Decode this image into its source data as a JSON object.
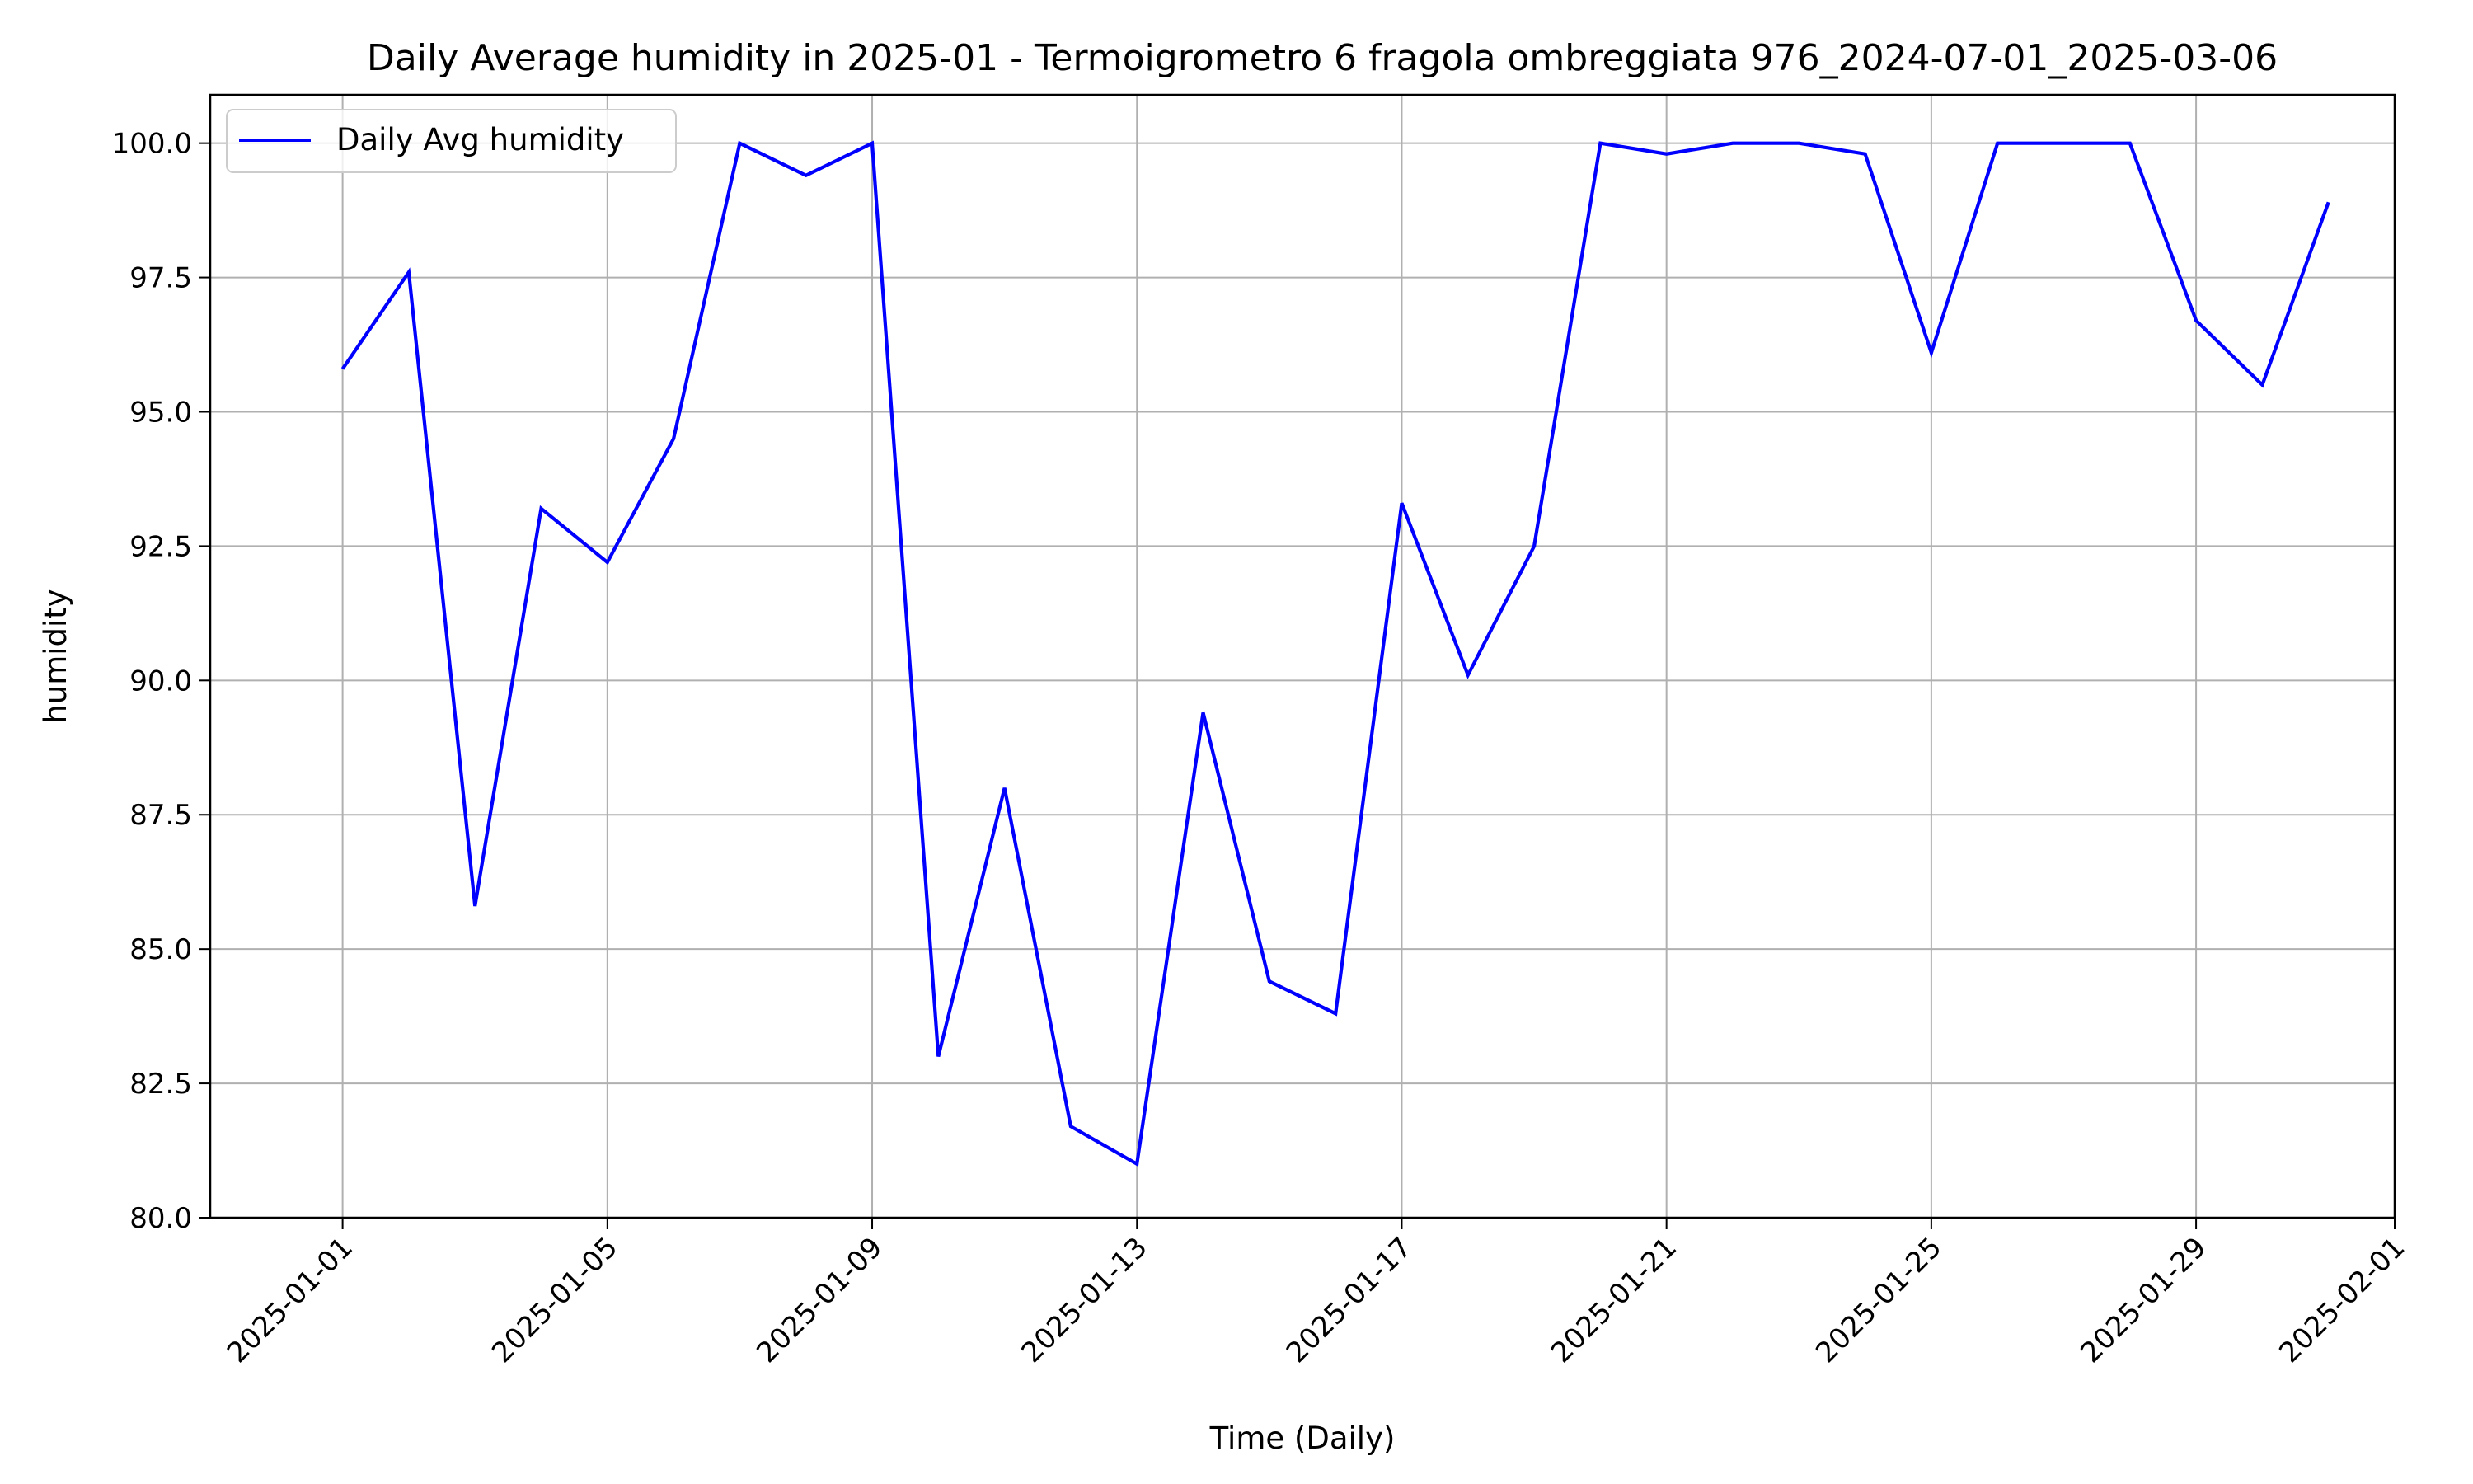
{
  "chart_data": {
    "type": "line",
    "title": "Daily Average humidity in 2025-01 - Termoigrometro 6 fragola ombreggiata 976_2024-07-01_2025-03-06",
    "xlabel": "Time (Daily)",
    "ylabel": "humidity",
    "xlim": [
      "2024-12-30",
      "2025-02-01"
    ],
    "ylim": [
      80.0,
      100.9
    ],
    "grid": true,
    "legend_position": "top-left",
    "x_ticks": [
      "2025-01-01",
      "2025-01-05",
      "2025-01-09",
      "2025-01-13",
      "2025-01-17",
      "2025-01-21",
      "2025-01-25",
      "2025-01-29",
      "2025-02-01"
    ],
    "y_ticks": [
      "80.0",
      "82.5",
      "85.0",
      "87.5",
      "90.0",
      "92.5",
      "95.0",
      "97.5",
      "100.0"
    ],
    "x": [
      "2025-01-01",
      "2025-01-02",
      "2025-01-03",
      "2025-01-04",
      "2025-01-05",
      "2025-01-06",
      "2025-01-07",
      "2025-01-08",
      "2025-01-09",
      "2025-01-10",
      "2025-01-11",
      "2025-01-12",
      "2025-01-13",
      "2025-01-14",
      "2025-01-15",
      "2025-01-16",
      "2025-01-17",
      "2025-01-18",
      "2025-01-19",
      "2025-01-20",
      "2025-01-21",
      "2025-01-22",
      "2025-01-23",
      "2025-01-24",
      "2025-01-25",
      "2025-01-26",
      "2025-01-27",
      "2025-01-28",
      "2025-01-29",
      "2025-01-30",
      "2025-01-31"
    ],
    "series": [
      {
        "name": "Daily Avg humidity",
        "color": "#0000ff",
        "values": [
          95.8,
          97.6,
          85.8,
          93.2,
          92.2,
          94.5,
          100.0,
          99.4,
          100.0,
          83.0,
          88.0,
          81.7,
          81.0,
          89.4,
          84.4,
          83.8,
          93.3,
          90.1,
          92.5,
          100.0,
          99.8,
          100.0,
          100.0,
          99.8,
          96.1,
          100.0,
          100.0,
          100.0,
          96.7,
          95.5,
          98.9
        ]
      }
    ]
  }
}
